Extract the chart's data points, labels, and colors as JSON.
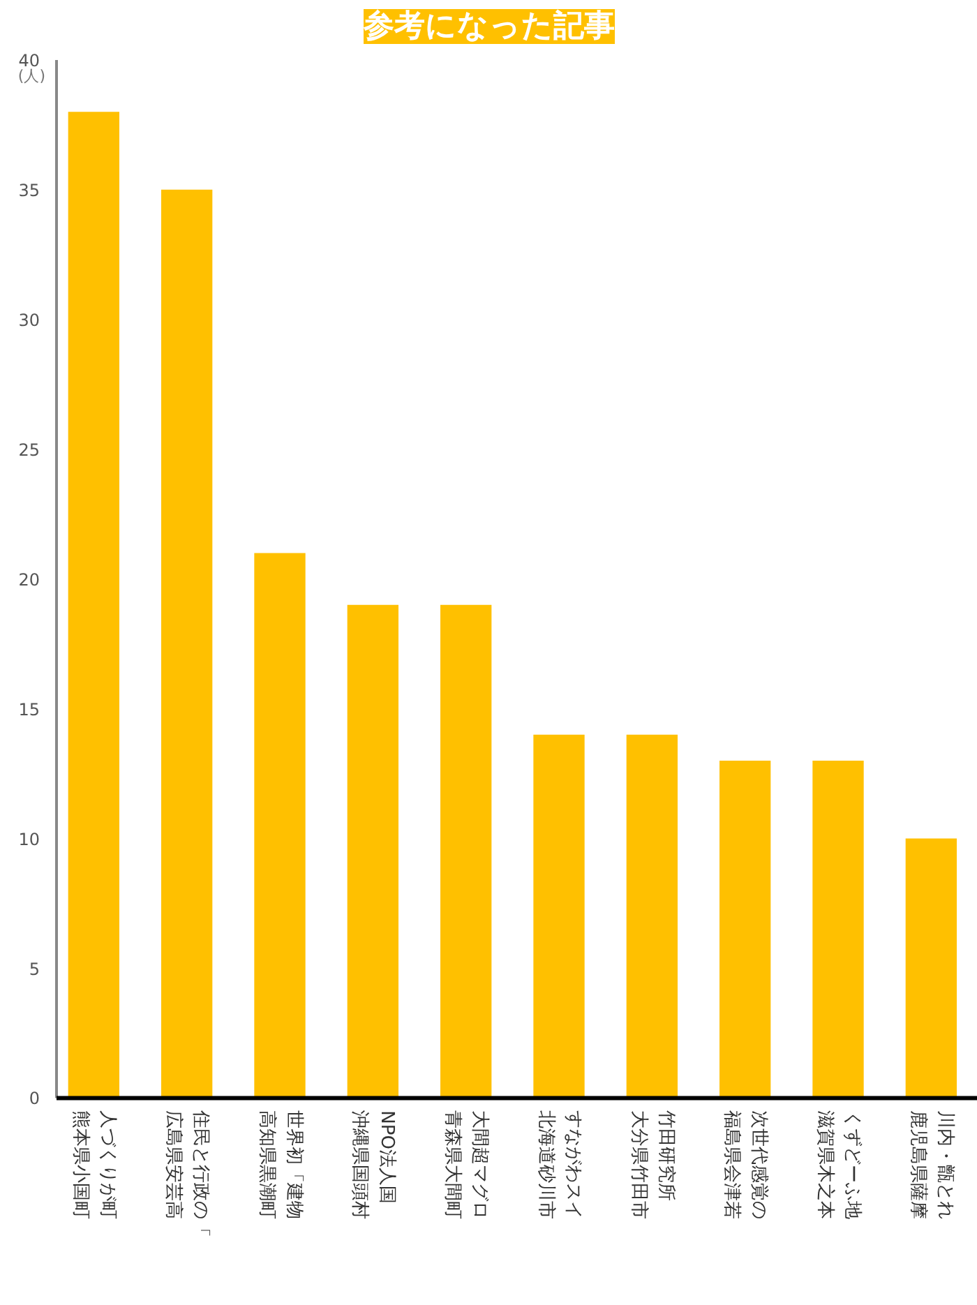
{
  "chart_data": {
    "type": "bar",
    "title": "参考になった記事",
    "ylabel": "(人)",
    "categories": [
      "人づくりが町熊本県小国町",
      "住民と行政の「広島県安芸高",
      "世界初「建物高知県黒潮町",
      "NPO法人国沖縄県国頭村",
      "大間超マグロ青森県大間町",
      "すながわスイ北海道砂川市",
      "竹田研究所大分県竹田市",
      "次世代感覚の福島県会津若",
      "くずどーふ地滋賀県木之本",
      "川内・甑とれ鹿児島県薩摩"
    ],
    "values": [
      38,
      35,
      21,
      19,
      19,
      14,
      14,
      13,
      13,
      10
    ],
    "color": "#ffc000",
    "ylim": [
      0,
      40
    ],
    "yticks": [
      0,
      5,
      10,
      15,
      20,
      25,
      30,
      35,
      40
    ],
    "grid": false
  }
}
